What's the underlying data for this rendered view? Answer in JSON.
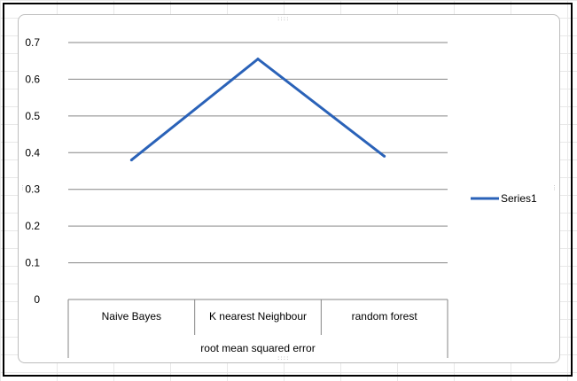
{
  "chart_data": {
    "type": "line",
    "title": "",
    "xlabel": "root mean squared error",
    "ylabel": "",
    "categories": [
      "Naive Bayes",
      "K nearest Neighbour",
      "random forest"
    ],
    "series": [
      {
        "name": "Series1",
        "values": [
          0.38,
          0.655,
          0.39
        ],
        "color": "#2a62b8"
      }
    ],
    "yticks": [
      "0",
      "0.1",
      "0.2",
      "0.3",
      "0.4",
      "0.5",
      "0.6",
      "0.7"
    ],
    "ylim": [
      0,
      0.7
    ],
    "grid": true,
    "legend_position": "right"
  }
}
